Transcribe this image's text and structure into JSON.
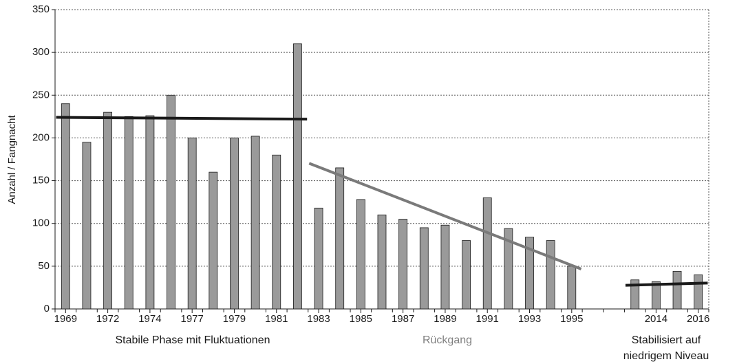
{
  "chart_data": {
    "type": "bar",
    "y_label": "Anzahl / Fangnacht",
    "categories": [
      "1969",
      null,
      "1972",
      null,
      "1974",
      null,
      "1977",
      null,
      "1979",
      null,
      "1981",
      null,
      "1983",
      null,
      "1985",
      null,
      "1987",
      null,
      "1989",
      null,
      "1991",
      null,
      "1993",
      null,
      "1995",
      null,
      null,
      null,
      "2014",
      null,
      "2016"
    ],
    "values": [
      240,
      195,
      230,
      225,
      226,
      250,
      200,
      160,
      200,
      202,
      180,
      310,
      118,
      165,
      128,
      110,
      105,
      95,
      98,
      80,
      130,
      94,
      84,
      80,
      50,
      null,
      null,
      34,
      32,
      44,
      40
    ],
    "color": "#9a9a9a",
    "ylim": [
      0,
      350
    ],
    "yticks": [
      0,
      50,
      100,
      150,
      200,
      250,
      300,
      350
    ],
    "grid": true,
    "trend_lines": [
      {
        "color": "#1a1a1a",
        "values": [
          224,
          null,
          null,
          null,
          null,
          null,
          null,
          null,
          null,
          null,
          null,
          222,
          null,
          null,
          null,
          null,
          null,
          null,
          null,
          null,
          null,
          null,
          null,
          null,
          null,
          null,
          null,
          null,
          null,
          null,
          null
        ]
      },
      {
        "color": "#7a7a7a",
        "values": [
          null,
          null,
          null,
          null,
          null,
          null,
          null,
          null,
          null,
          null,
          null,
          null,
          166,
          null,
          null,
          null,
          null,
          null,
          null,
          null,
          null,
          null,
          null,
          null,
          51,
          null,
          null,
          null,
          null,
          null,
          null
        ]
      },
      {
        "color": "#1a1a1a",
        "values": [
          null,
          null,
          null,
          null,
          null,
          null,
          null,
          null,
          null,
          null,
          null,
          null,
          null,
          null,
          null,
          null,
          null,
          null,
          null,
          null,
          null,
          null,
          null,
          null,
          null,
          null,
          null,
          28,
          null,
          null,
          30
        ]
      }
    ],
    "annotations": [
      {
        "lines": [
          "Stabile Phase mit Fluktuationen"
        ],
        "color": "#1a1a1a"
      },
      {
        "lines": [
          "Rückgang"
        ],
        "color": "#808080"
      },
      {
        "lines": [
          "Stabilisiert auf",
          "niedrigem Niveau"
        ],
        "color": "#1a1a1a"
      }
    ]
  }
}
